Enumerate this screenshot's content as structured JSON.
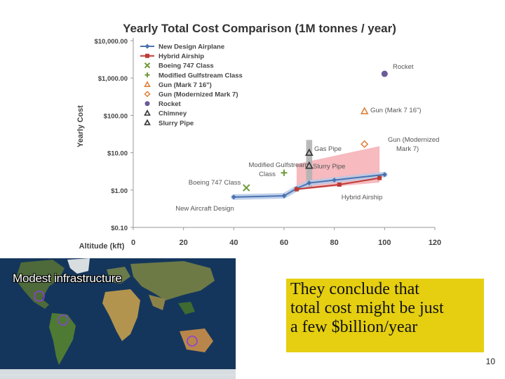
{
  "chart_data": {
    "type": "line",
    "title": "Yearly Total Cost Comparison (1M tonnes / year)",
    "xlabel": "Altitude (kft)",
    "ylabel": "Yearly Cost",
    "y_scale": "log",
    "xlim": [
      0,
      120
    ],
    "ylim": [
      0.1,
      10000
    ],
    "x_ticks": [
      0,
      20,
      40,
      60,
      80,
      100,
      120
    ],
    "y_ticks": [
      0.1,
      1,
      10,
      100,
      1000,
      10000
    ],
    "y_tick_labels": [
      "$0.10",
      "$1.00",
      "$10.00",
      "$100.00",
      "$1,000.00",
      "$10,000.00"
    ],
    "grid": false,
    "legend_position": "top-left",
    "legend": [
      {
        "name": "New Design Airplane",
        "symbol": "diamond-line",
        "color": "#4a72b0"
      },
      {
        "name": "Hybrid Airship",
        "symbol": "square-line",
        "color": "#be3a34"
      },
      {
        "name": "Boeing 747 Class",
        "symbol": "x",
        "color": "#6e9a3a"
      },
      {
        "name": "Modified Gulfstream Class",
        "symbol": "plus",
        "color": "#6e9a3a"
      },
      {
        "name": "Gun (Mark 7 16\")",
        "symbol": "triangle-open",
        "color": "#e0803a"
      },
      {
        "name": "Gun (Modernized Mark 7)",
        "symbol": "diamond-open",
        "color": "#e0803a"
      },
      {
        "name": "Rocket",
        "symbol": "circle",
        "color": "#6a5a9a"
      },
      {
        "name": "Chimney",
        "symbol": "triangle-open",
        "color": "#333333"
      },
      {
        "name": "Slurry Pipe",
        "symbol": "triangle-open",
        "color": "#333333"
      }
    ],
    "series": [
      {
        "name": "New Design Airplane",
        "x": [
          40,
          60,
          65,
          70,
          80,
          100
        ],
        "y": [
          0.65,
          0.7,
          1.1,
          1.55,
          1.85,
          2.6
        ]
      },
      {
        "name": "Hybrid Airship",
        "x": [
          65,
          82,
          98
        ],
        "y": [
          1.05,
          1.4,
          2.1
        ]
      }
    ],
    "points": [
      {
        "name": "Boeing 747 Class",
        "x": 45,
        "y": 1.15
      },
      {
        "name": "Modified Gulfstream Class",
        "x": 60,
        "y": 2.9
      },
      {
        "name": "Gun (Mark 7 16\")",
        "x": 92,
        "y": 130
      },
      {
        "name": "Gun (Modernized Mark 7)",
        "x": 92,
        "y": 17
      },
      {
        "name": "Rocket",
        "x": 100,
        "y": 1300
      },
      {
        "name": "Chimney",
        "x": 70,
        "y": 10
      },
      {
        "name": "Slurry Pipe",
        "x": 70,
        "y": 4.5
      }
    ],
    "annotations": [
      {
        "text": "Rocket"
      },
      {
        "text": "Gun (Mark 7 16\")"
      },
      {
        "text": "Gun (Modernized"
      },
      {
        "text": "Mark 7)"
      },
      {
        "text": "Gas Pipe"
      },
      {
        "text": "Slurry Pipe"
      },
      {
        "text": "Modified Gulfstream"
      },
      {
        "text": "Class"
      },
      {
        "text": "Boeing 747 Class"
      },
      {
        "text": "New Aircraft Design"
      },
      {
        "text": "Hybrid Airship"
      }
    ],
    "colors": {
      "airplane_line": "#4a72b0",
      "airplane_glow": "#b6c9e6",
      "airship_line": "#be3a34",
      "pink_band": "#f3a3aa",
      "pipe_band": "#b2b2b2",
      "axis": "#999999"
    }
  },
  "map": {
    "caption": "Modest infrastructure"
  },
  "callout": {
    "lines": [
      "They conclude that",
      "total cost might be just",
      "a few $billion/year"
    ],
    "background": "#e5cf10"
  },
  "slide": {
    "number": "10"
  }
}
